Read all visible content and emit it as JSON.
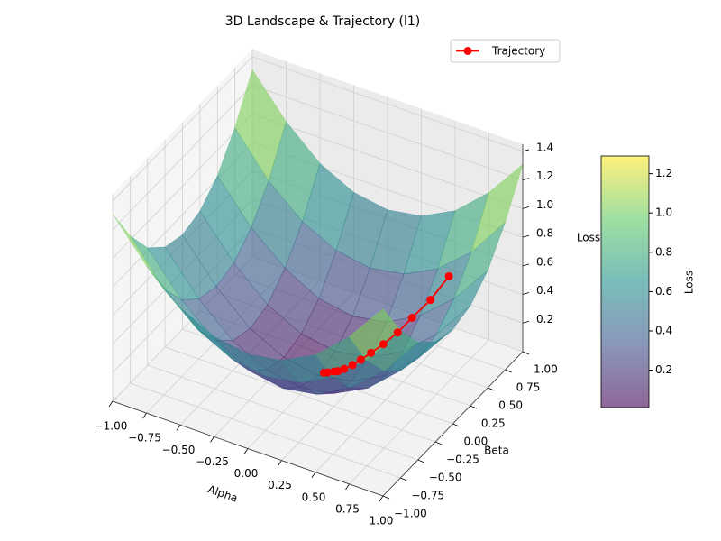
{
  "chart_data": {
    "type": "surface3d",
    "title": "3D Landscape & Trajectory (l1)",
    "xlabel": "Alpha",
    "ylabel": "Beta",
    "zlabel": "Loss",
    "xlim": [
      -1,
      1
    ],
    "ylim": [
      -1,
      1
    ],
    "zlim": [
      0,
      1.45
    ],
    "xticks": [
      {
        "value": -1,
        "label": "−1.00"
      },
      {
        "value": -0.75,
        "label": "−0.75"
      },
      {
        "value": -0.5,
        "label": "−0.50"
      },
      {
        "value": -0.25,
        "label": "−0.25"
      },
      {
        "value": 0,
        "label": "0.00"
      },
      {
        "value": 0.25,
        "label": "0.25"
      },
      {
        "value": 0.5,
        "label": "0.50"
      },
      {
        "value": 0.75,
        "label": "0.75"
      },
      {
        "value": 1,
        "label": "1.00"
      }
    ],
    "yticks": [
      {
        "value": -1,
        "label": "−1.00"
      },
      {
        "value": -0.75,
        "label": "−0.75"
      },
      {
        "value": -0.5,
        "label": "−0.50"
      },
      {
        "value": -0.25,
        "label": "−0.25"
      },
      {
        "value": 0,
        "label": "0.00"
      },
      {
        "value": 0.25,
        "label": "0.25"
      },
      {
        "value": 0.5,
        "label": "0.50"
      },
      {
        "value": 0.75,
        "label": "0.75"
      },
      {
        "value": 1,
        "label": "1.00"
      }
    ],
    "zticks": [
      0.2,
      0.4,
      0.6,
      0.8,
      {
        "value": 1,
        "label": "1.0"
      },
      1.2,
      1.4
    ],
    "surface": {
      "alpha": [
        -1,
        -0.75,
        -0.5,
        -0.25,
        0,
        0.25,
        0.5,
        0.75,
        1
      ],
      "beta": [
        -1,
        -0.75,
        -0.5,
        -0.25,
        0,
        0.25,
        0.5,
        0.75,
        1
      ],
      "z": [
        [
          1.31,
          1.03,
          0.82,
          0.7,
          0.66,
          0.7,
          0.82,
          1.03,
          1.31
        ],
        [
          1.03,
          0.74,
          0.54,
          0.42,
          0.38,
          0.42,
          0.54,
          0.74,
          1.03
        ],
        [
          0.82,
          0.54,
          0.34,
          0.21,
          0.17,
          0.21,
          0.34,
          0.54,
          0.82
        ],
        [
          0.7,
          0.42,
          0.21,
          0.09,
          0.05,
          0.09,
          0.21,
          0.42,
          0.7
        ],
        [
          0.66,
          0.38,
          0.17,
          0.05,
          0.01,
          0.05,
          0.17,
          0.38,
          0.66
        ],
        [
          0.7,
          0.42,
          0.21,
          0.09,
          0.05,
          0.09,
          0.21,
          0.42,
          0.7
        ],
        [
          0.82,
          0.54,
          0.34,
          0.21,
          0.17,
          0.21,
          0.34,
          0.54,
          0.82
        ],
        [
          1.03,
          0.74,
          0.54,
          0.42,
          0.38,
          0.42,
          0.54,
          0.74,
          1.03
        ],
        [
          1.31,
          1.03,
          0.82,
          0.7,
          0.66,
          0.7,
          0.82,
          1.03,
          1.31
        ]
      ]
    },
    "trajectory": {
      "name": "Trajectory",
      "color": "#ff0000",
      "alpha": [
        0.64,
        0.55,
        0.46,
        0.39,
        0.32,
        0.26,
        0.21,
        0.17,
        0.13,
        0.1,
        0.08,
        0.05,
        0.03
      ],
      "beta": [
        0.64,
        0.55,
        0.46,
        0.39,
        0.32,
        0.26,
        0.21,
        0.17,
        0.13,
        0.1,
        0.08,
        0.05,
        0.03
      ],
      "loss": [
        0.59,
        0.44,
        0.33,
        0.24,
        0.17,
        0.12,
        0.08,
        0.05,
        0.03,
        0.02,
        0.02,
        0.02,
        0.02
      ]
    },
    "colorbar": {
      "label": "Loss",
      "clim": [
        0.01,
        1.29
      ],
      "ticks": [
        0.2,
        0.4,
        0.6,
        0.8,
        {
          "value": 1,
          "label": "1.0"
        },
        1.2
      ]
    },
    "colormap": [
      "#440154",
      "#3b528b",
      "#21918c",
      "#5ec962",
      "#fde725"
    ],
    "surface_opacity": 0.6,
    "legend": "upper right",
    "grid": true
  }
}
